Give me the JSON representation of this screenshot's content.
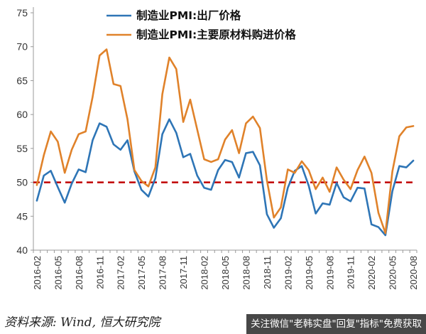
{
  "chart_data": {
    "type": "line",
    "title": "",
    "xlabel": "",
    "ylabel": "",
    "ylim": [
      40,
      75
    ],
    "yticks": [
      40,
      45,
      50,
      55,
      60,
      65,
      70,
      75
    ],
    "x": [
      "2016-02",
      "2016-03",
      "2016-04",
      "2016-05",
      "2016-06",
      "2016-07",
      "2016-08",
      "2016-09",
      "2016-10",
      "2016-11",
      "2016-12",
      "2017-01",
      "2017-02",
      "2017-03",
      "2017-04",
      "2017-05",
      "2017-06",
      "2017-07",
      "2017-08",
      "2017-09",
      "2017-10",
      "2017-11",
      "2017-12",
      "2018-01",
      "2018-02",
      "2018-03",
      "2018-04",
      "2018-05",
      "2018-06",
      "2018-07",
      "2018-08",
      "2018-09",
      "2018-10",
      "2018-11",
      "2018-12",
      "2019-01",
      "2019-02",
      "2019-03",
      "2019-04",
      "2019-05",
      "2019-06",
      "2019-07",
      "2019-08",
      "2019-09",
      "2019-10",
      "2019-11",
      "2019-12",
      "2020-01",
      "2020-02",
      "2020-03",
      "2020-04",
      "2020-05",
      "2020-06",
      "2020-07",
      "2020-08"
    ],
    "x_tick_labels": [
      "2016-02",
      "2016-05",
      "2016-08",
      "2016-11",
      "2017-02",
      "2017-05",
      "2017-08",
      "2017-11",
      "2018-02",
      "2018-05",
      "2018-08",
      "2018-11",
      "2019-02",
      "2019-05",
      "2019-08",
      "2019-11",
      "2020-02",
      "2020-05",
      "2020-08"
    ],
    "series": [
      {
        "name": "制造业PMI:出厂价格",
        "color": "#2e75b6",
        "values": [
          47.3,
          51.0,
          51.7,
          49.3,
          47.0,
          49.8,
          51.9,
          51.5,
          56.2,
          58.7,
          58.2,
          55.6,
          54.8,
          56.2,
          51.6,
          48.9,
          47.9,
          50.6,
          57.1,
          59.3,
          57.3,
          53.7,
          54.2,
          51.0,
          49.2,
          48.9,
          51.8,
          53.3,
          53.0,
          50.7,
          54.3,
          54.5,
          52.5,
          45.3,
          43.3,
          44.7,
          49.2,
          51.7,
          52.4,
          49.5,
          45.4,
          46.9,
          46.7,
          49.9,
          47.8,
          47.2,
          49.2,
          49.1,
          43.8,
          43.4,
          42.2,
          48.7,
          52.4,
          52.2,
          53.2
        ]
      },
      {
        "name": "制造业PMI:主要原材料购进价格",
        "color": "#e0822a",
        "values": [
          49.6,
          54.0,
          57.5,
          56.0,
          51.4,
          54.8,
          57.1,
          57.5,
          62.6,
          68.7,
          69.6,
          64.5,
          64.2,
          59.3,
          51.8,
          50.2,
          49.4,
          52.2,
          63.0,
          68.4,
          66.7,
          58.9,
          62.2,
          57.8,
          53.4,
          53.0,
          53.4,
          56.3,
          57.7,
          54.3,
          58.7,
          59.7,
          58.0,
          50.3,
          44.8,
          46.3,
          51.9,
          51.4,
          53.1,
          51.8,
          49.0,
          50.7,
          48.6,
          52.2,
          50.4,
          49.0,
          51.8,
          53.8,
          51.4,
          45.5,
          42.5,
          51.6,
          56.8,
          58.1,
          58.3
        ]
      }
    ],
    "reference_line": {
      "y": 50,
      "color": "#c00000",
      "style": "dashed"
    },
    "legend_position": "top-center",
    "grid": false
  },
  "footer": {
    "source_text": "资料来源: Wind, 恒大研究院",
    "watermark_text": "关注微信\"老韩实盘\"回复\"指标\"免费获取"
  }
}
